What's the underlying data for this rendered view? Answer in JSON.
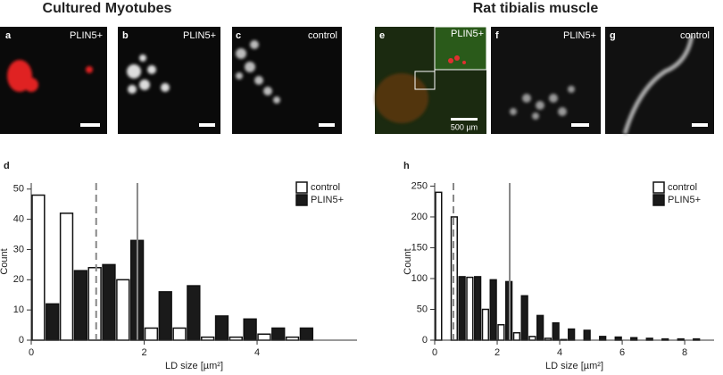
{
  "figure": {
    "sections": [
      "Cultured Myotubes",
      "Rat tibialis muscle"
    ],
    "panels": [
      {
        "letter": "a",
        "label": "PLIN5+"
      },
      {
        "letter": "b",
        "label": "PLIN5+"
      },
      {
        "letter": "c",
        "label": "control"
      },
      {
        "letter": "e",
        "label": "PLIN5+",
        "scale_label": "500 µm"
      },
      {
        "letter": "f",
        "label": "PLIN5+"
      },
      {
        "letter": "g",
        "label": "control"
      }
    ]
  },
  "chart_data": [
    {
      "type": "histogram",
      "panel_letter": "d",
      "x_label": "LD size [µm²]",
      "y_label": "Count",
      "bins": [
        0,
        0.5,
        1,
        1.5,
        2,
        2.5,
        3,
        3.5,
        4,
        4.5,
        5
      ],
      "series": [
        {
          "name": "control",
          "color": "#ffffff",
          "values": [
            48,
            42,
            24,
            20,
            4,
            4,
            1,
            1,
            2,
            1
          ]
        },
        {
          "name": "PLIN5+",
          "color": "#1a1a1a",
          "values": [
            12,
            23,
            25,
            33,
            16,
            18,
            8,
            7,
            4,
            4
          ]
        }
      ],
      "vlines": [
        {
          "value": 1.15,
          "style": "dashed"
        },
        {
          "value": 1.88,
          "style": "solid"
        }
      ],
      "xlim": [
        0,
        5.77
      ],
      "xticks": [
        0,
        2,
        4
      ],
      "ylim": [
        0,
        52
      ],
      "yticks": [
        0,
        10,
        20,
        30,
        40,
        50
      ],
      "legend": "top-right"
    },
    {
      "type": "histogram",
      "panel_letter": "h",
      "x_label": "LD size [µm²]",
      "y_label": "Count",
      "bins": [
        0,
        0.5,
        1,
        1.5,
        2,
        2.5,
        3,
        3.5,
        4,
        4.5,
        5,
        5.5,
        6,
        6.5,
        7,
        7.5,
        8,
        8.5
      ],
      "series": [
        {
          "name": "control",
          "color": "#ffffff",
          "values": [
            240,
            200,
            102,
            50,
            25,
            12,
            6,
            3,
            1,
            0,
            0,
            0,
            0,
            0,
            0,
            0,
            0
          ]
        },
        {
          "name": "PLIN5+",
          "color": "#1a1a1a",
          "values": [
            0,
            103,
            103,
            98,
            95,
            72,
            40,
            28,
            18,
            16,
            6,
            5,
            4,
            3,
            2,
            2,
            2
          ]
        }
      ],
      "vlines": [
        {
          "value": 0.6,
          "style": "dashed"
        },
        {
          "value": 2.4,
          "style": "solid"
        }
      ],
      "xlim": [
        0,
        8.94
      ],
      "xticks": [
        0,
        2,
        4,
        6,
        8
      ],
      "ylim": [
        0,
        255
      ],
      "yticks": [
        0,
        50,
        100,
        150,
        200,
        250
      ],
      "legend": "top-right"
    }
  ]
}
